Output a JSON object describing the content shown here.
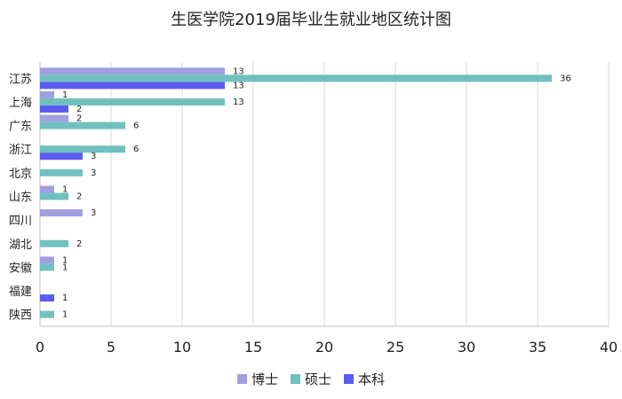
{
  "chart_data": {
    "type": "bar",
    "orientation": "horizontal",
    "title": "生医学院2019届毕业生就业地区统计图",
    "categories": [
      "江苏",
      "上海",
      "广东",
      "浙江",
      "北京",
      "山东",
      "四川",
      "湖北",
      "安徽",
      "福建",
      "陕西"
    ],
    "series": [
      {
        "name": "博士",
        "color": "#A0A0E0",
        "values": [
          13,
          1,
          2,
          null,
          null,
          1,
          3,
          null,
          1,
          null,
          null
        ]
      },
      {
        "name": "硕士",
        "color": "#70C0C0",
        "values": [
          36,
          13,
          6,
          6,
          3,
          2,
          null,
          2,
          1,
          null,
          1
        ]
      },
      {
        "name": "本科",
        "color": "#5B5BF0",
        "values": [
          13,
          2,
          null,
          3,
          null,
          null,
          null,
          null,
          null,
          1,
          null
        ]
      }
    ],
    "xlim": [
      0,
      40
    ],
    "xticks": [
      0,
      5,
      10,
      15,
      20,
      25,
      30,
      35,
      40
    ],
    "grid": true,
    "legend_position": "bottom"
  }
}
